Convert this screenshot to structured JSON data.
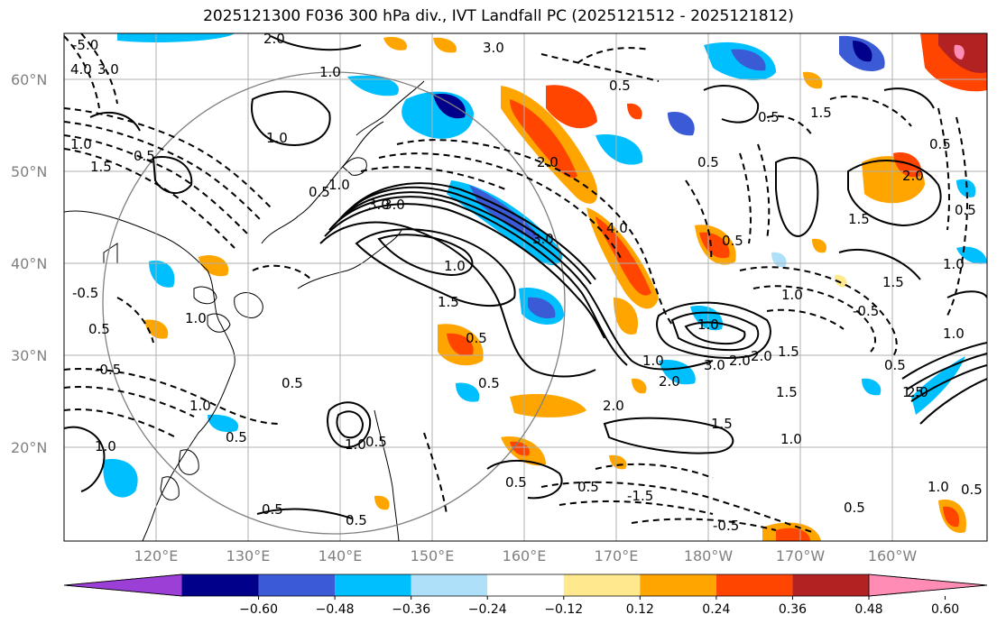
{
  "title": "2025121300 F036 300 hPa div., IVT Landfall PC (2025121512 - 2025121812)",
  "lat_labels": [
    "60°N",
    "50°N",
    "40°N",
    "30°N",
    "20°N"
  ],
  "lon_labels": [
    "120°E",
    "130°E",
    "140°E",
    "150°E",
    "160°E",
    "170°E",
    "180°W",
    "170°W",
    "160°W"
  ],
  "colorbar": {
    "ticks": [
      "−0.60",
      "−0.48",
      "−0.36",
      "−0.24",
      "−0.12",
      "0.12",
      "0.24",
      "0.36",
      "0.48",
      "0.60"
    ],
    "colors": [
      "#9c3fd6",
      "#00008b",
      "#3b5bd6",
      "#00bfff",
      "#aee0fa",
      "#ffffff",
      "#ffe98c",
      "#ffa500",
      "#ff4500",
      "#b22222",
      "#ff8cb4"
    ]
  },
  "contour_labels": [
    "-5.0",
    "2.0",
    "3.0",
    "4.0",
    "3.0",
    "1.0",
    "0.5",
    "1.0",
    "0.5",
    "1.5",
    "1.0",
    "3.0",
    "2.0",
    "3.0",
    "4.0",
    "1.5",
    "0.5",
    "0.5",
    "1.0",
    "1.5",
    "0.5",
    "-0.5",
    "1.0",
    "1.5",
    "0.5",
    "1.5",
    "2.0",
    "0.5",
    "1.0",
    "0.5",
    "1.0",
    "-0.5",
    "0.5",
    "1.0",
    "0.5",
    "0.5",
    "1.0",
    "1.5",
    "2.0",
    "2.0",
    "3.0",
    "1.0",
    "2.0",
    "0.5",
    "1.5",
    "1.0",
    "1.5",
    "-1.5",
    "-0.5",
    "1.5",
    "0.5",
    "0.5",
    "2.0",
    "0.5",
    "1.0",
    "0.5",
    "0.5",
    "0.5",
    "1.0",
    "-0.5",
    "1.0",
    "0.5",
    "3.0",
    "0.5",
    "2.0",
    "1.0",
    "0.5",
    "1.0"
  ]
}
